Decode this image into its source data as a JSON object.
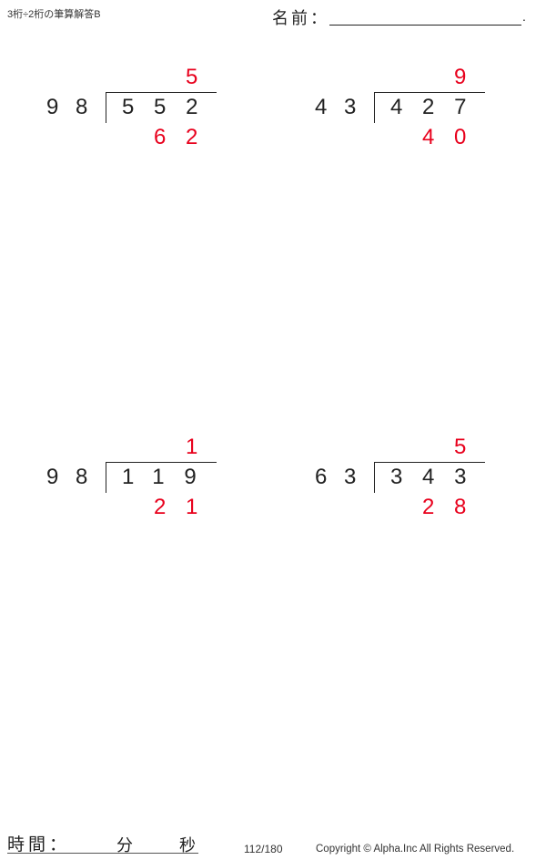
{
  "header": {
    "title": "3桁÷2桁の筆算解答B",
    "name_label": "名前：",
    "name_period": "."
  },
  "problems": [
    {
      "divisor": "98",
      "dividend": "552",
      "quotient": "5",
      "remainder": "62"
    },
    {
      "divisor": "43",
      "dividend": "427",
      "quotient": "9",
      "remainder": "40"
    },
    {
      "divisor": "98",
      "dividend": "119",
      "quotient": "1",
      "remainder": "21"
    },
    {
      "divisor": "63",
      "dividend": "343",
      "quotient": "5",
      "remainder": "28"
    }
  ],
  "footer": {
    "time_label": "時間：",
    "minutes_label": "分",
    "seconds_label": "秒",
    "page": "112/180",
    "copyright": "Copyright © Alpha.Inc All Rights Reserved."
  },
  "colors": {
    "answer": "#e8001c",
    "text": "#222222"
  }
}
